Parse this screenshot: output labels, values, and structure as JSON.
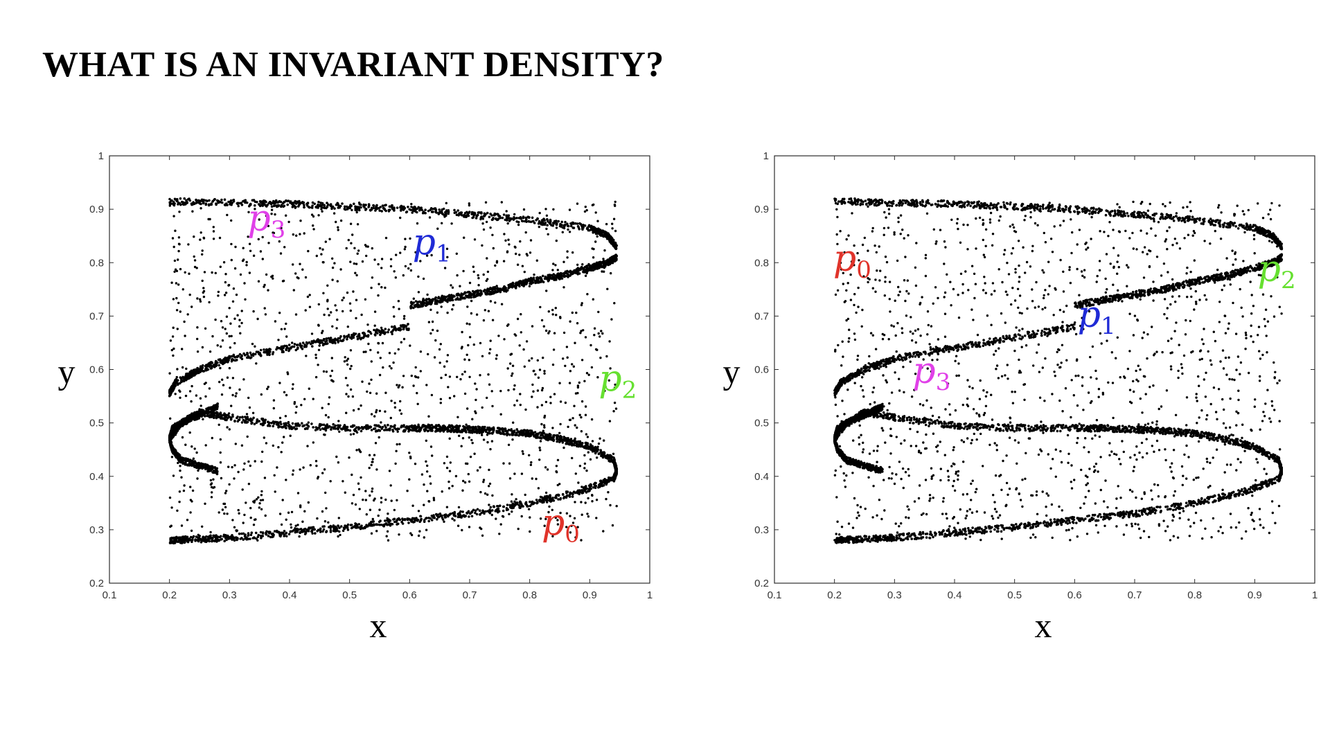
{
  "slide": {
    "title": "WHAT IS AN INVARIANT DENSITY?"
  },
  "chart_data": [
    {
      "type": "scatter",
      "xlabel": "x",
      "ylabel": "y",
      "xlim": [
        0.1,
        1
      ],
      "ylim": [
        0.2,
        1
      ],
      "xticks": [
        "0.1",
        "0.2",
        "0.3",
        "0.4",
        "0.5",
        "0.6",
        "0.7",
        "0.8",
        "0.9",
        "1"
      ],
      "yticks": [
        "0.2",
        "0.3",
        "0.4",
        "0.5",
        "0.6",
        "0.7",
        "0.8",
        "0.9",
        "1"
      ],
      "grid": false,
      "marker_color": "#000000",
      "annotations": [
        {
          "base": "p",
          "sub": "0",
          "color": "#e0332a",
          "x": 0.82,
          "y": 0.29
        },
        {
          "base": "p",
          "sub": "1",
          "color": "#1f2bd6",
          "x": 0.605,
          "y": 0.815
        },
        {
          "base": "p",
          "sub": "2",
          "color": "#66e030",
          "x": 0.915,
          "y": 0.56
        },
        {
          "base": "p",
          "sub": "3",
          "color": "#e040e8",
          "x": 0.33,
          "y": 0.86
        }
      ],
      "series": [
        {
          "x": [
            0.2,
            0.24,
            0.3,
            0.4,
            0.5,
            0.6,
            0.7,
            0.8,
            0.88,
            0.94,
            0.945
          ],
          "y": [
            0.28,
            0.282,
            0.285,
            0.295,
            0.305,
            0.318,
            0.33,
            0.35,
            0.37,
            0.395,
            0.41
          ]
        },
        {
          "x": [
            0.945,
            0.94,
            0.9,
            0.85,
            0.8,
            0.75,
            0.7,
            0.65,
            0.6
          ],
          "y": [
            0.41,
            0.43,
            0.455,
            0.47,
            0.48,
            0.485,
            0.488,
            0.49,
            0.49
          ]
        },
        {
          "x": [
            0.6,
            0.5,
            0.4,
            0.3,
            0.25
          ],
          "y": [
            0.49,
            0.49,
            0.495,
            0.51,
            0.52
          ]
        },
        {
          "x": [
            0.25,
            0.22,
            0.2,
            0.205,
            0.22,
            0.25,
            0.28
          ],
          "y": [
            0.52,
            0.5,
            0.47,
            0.45,
            0.43,
            0.42,
            0.41
          ]
        },
        {
          "x": [
            0.28,
            0.26,
            0.23,
            0.205,
            0.2
          ],
          "y": [
            0.53,
            0.52,
            0.505,
            0.49,
            0.47
          ]
        },
        {
          "x": [
            0.2,
            0.21,
            0.25,
            0.3,
            0.4,
            0.5,
            0.6
          ],
          "y": [
            0.555,
            0.575,
            0.6,
            0.62,
            0.64,
            0.66,
            0.68
          ]
        },
        {
          "x": [
            0.6,
            0.65,
            0.7,
            0.75,
            0.8,
            0.85,
            0.9,
            0.93,
            0.945
          ],
          "y": [
            0.72,
            0.73,
            0.74,
            0.75,
            0.765,
            0.775,
            0.79,
            0.8,
            0.81
          ]
        },
        {
          "x": [
            0.945,
            0.93,
            0.9,
            0.8,
            0.7,
            0.6,
            0.5,
            0.4,
            0.3,
            0.2
          ],
          "y": [
            0.83,
            0.85,
            0.865,
            0.88,
            0.89,
            0.9,
            0.905,
            0.91,
            0.912,
            0.915
          ]
        }
      ]
    },
    {
      "type": "scatter",
      "xlabel": "x",
      "ylabel": "y",
      "xlim": [
        0.1,
        1
      ],
      "ylim": [
        0.2,
        1
      ],
      "xticks": [
        "0.1",
        "0.2",
        "0.3",
        "0.4",
        "0.5",
        "0.6",
        "0.7",
        "0.8",
        "0.9",
        "1"
      ],
      "yticks": [
        "0.2",
        "0.3",
        "0.4",
        "0.5",
        "0.6",
        "0.7",
        "0.8",
        "0.9",
        "1"
      ],
      "grid": false,
      "marker_color": "#000000",
      "annotations": [
        {
          "base": "p",
          "sub": "0",
          "color": "#e0332a",
          "x": 0.198,
          "y": 0.785
        },
        {
          "base": "p",
          "sub": "1",
          "color": "#1f2bd6",
          "x": 0.605,
          "y": 0.68
        },
        {
          "base": "p",
          "sub": "2",
          "color": "#66e030",
          "x": 0.905,
          "y": 0.765
        },
        {
          "base": "p",
          "sub": "3",
          "color": "#e040e8",
          "x": 0.33,
          "y": 0.575
        }
      ],
      "series": [
        {
          "x": [
            0.2,
            0.24,
            0.3,
            0.4,
            0.5,
            0.6,
            0.7,
            0.8,
            0.88,
            0.94,
            0.945
          ],
          "y": [
            0.28,
            0.282,
            0.285,
            0.295,
            0.305,
            0.318,
            0.33,
            0.35,
            0.37,
            0.395,
            0.41
          ]
        },
        {
          "x": [
            0.945,
            0.94,
            0.9,
            0.85,
            0.8,
            0.75,
            0.7,
            0.65,
            0.6
          ],
          "y": [
            0.41,
            0.43,
            0.455,
            0.47,
            0.48,
            0.485,
            0.488,
            0.49,
            0.49
          ]
        },
        {
          "x": [
            0.6,
            0.5,
            0.4,
            0.3,
            0.25
          ],
          "y": [
            0.49,
            0.49,
            0.495,
            0.51,
            0.52
          ]
        },
        {
          "x": [
            0.25,
            0.22,
            0.2,
            0.205,
            0.22,
            0.25,
            0.28
          ],
          "y": [
            0.52,
            0.5,
            0.47,
            0.45,
            0.43,
            0.42,
            0.41
          ]
        },
        {
          "x": [
            0.28,
            0.26,
            0.23,
            0.205,
            0.2
          ],
          "y": [
            0.53,
            0.52,
            0.505,
            0.49,
            0.47
          ]
        },
        {
          "x": [
            0.2,
            0.21,
            0.25,
            0.3,
            0.4,
            0.5,
            0.6
          ],
          "y": [
            0.555,
            0.575,
            0.6,
            0.62,
            0.64,
            0.66,
            0.68
          ]
        },
        {
          "x": [
            0.6,
            0.65,
            0.7,
            0.75,
            0.8,
            0.85,
            0.9,
            0.93,
            0.945
          ],
          "y": [
            0.72,
            0.73,
            0.74,
            0.75,
            0.765,
            0.775,
            0.79,
            0.8,
            0.81
          ]
        },
        {
          "x": [
            0.945,
            0.93,
            0.9,
            0.8,
            0.7,
            0.6,
            0.5,
            0.4,
            0.3,
            0.2
          ],
          "y": [
            0.83,
            0.85,
            0.865,
            0.88,
            0.89,
            0.9,
            0.905,
            0.91,
            0.912,
            0.915
          ]
        }
      ]
    }
  ]
}
